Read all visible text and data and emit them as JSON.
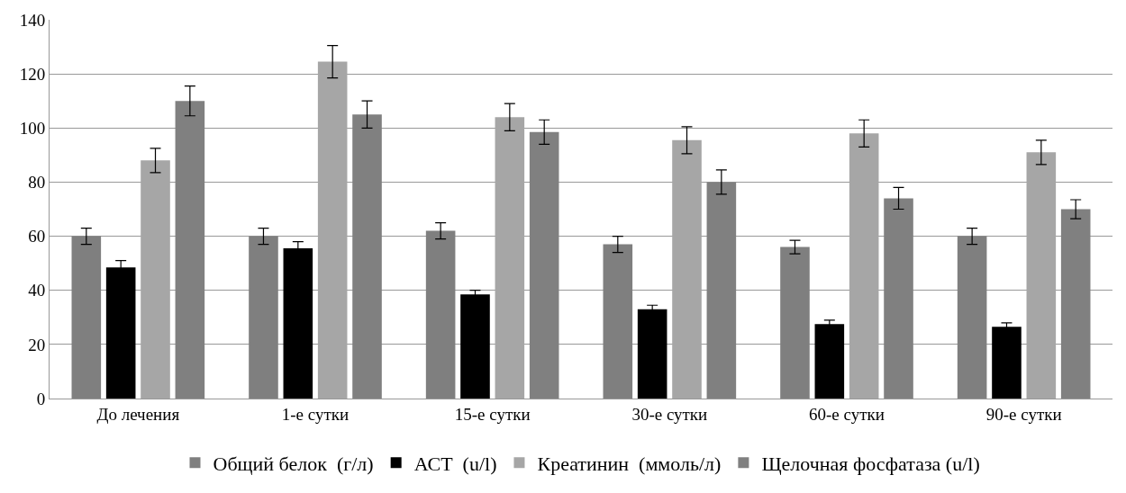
{
  "chart_data": {
    "type": "bar",
    "categories": [
      "До лечения",
      "1-е сутки",
      "15-е сутки",
      "30-е сутки",
      "60-е сутки",
      "90-е сутки"
    ],
    "series": [
      {
        "name": "Общий белок  (г/л)",
        "color": "#7f7f7f",
        "values": [
          60,
          60,
          62,
          57,
          56,
          60
        ],
        "errors": [
          3,
          3,
          3,
          3,
          2.5,
          3
        ]
      },
      {
        "name": "АСТ  (u/l)",
        "color": "#000000",
        "values": [
          48.5,
          55.5,
          38.5,
          33,
          27.5,
          26.5
        ],
        "errors": [
          2.5,
          2.5,
          1.5,
          1.5,
          1.5,
          1.5
        ]
      },
      {
        "name": "Креатинин  (ммоль/л)",
        "color": "#a6a6a6",
        "values": [
          88,
          124.5,
          104,
          95.5,
          98,
          91
        ],
        "errors": [
          4.5,
          6,
          5,
          5,
          5,
          4.5
        ]
      },
      {
        "name": "Щелочная фосфатаза (u/l)",
        "color": "#808080",
        "values": [
          110,
          105,
          98.5,
          80,
          74,
          70
        ],
        "errors": [
          5.5,
          5,
          4.5,
          4.5,
          4,
          3.5
        ]
      }
    ],
    "ylim": [
      0,
      140
    ],
    "yticks": [
      0,
      20,
      40,
      60,
      80,
      100,
      120,
      140
    ],
    "grid": "y",
    "legend": "bottom"
  }
}
